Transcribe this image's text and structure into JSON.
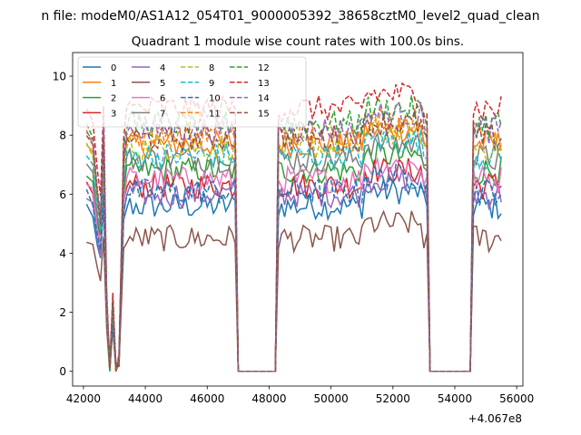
{
  "chart_data": {
    "type": "line",
    "suptitle": "n file: modeM0/AS1A12_054T01_9000005392_38658cztM0_level2_quad_clean",
    "title": "Quadrant 1 module wise count rates with 100.0s bins.",
    "xlabel": "",
    "ylabel": "",
    "x_offset_label": "+4.067e8",
    "xlim": [
      41650,
      56200
    ],
    "ylim": [
      -0.5,
      10.8
    ],
    "x_ticks": [
      42000,
      44000,
      46000,
      48000,
      50000,
      52000,
      54000,
      56000
    ],
    "x_tick_labels": [
      "42000",
      "44000",
      "46000",
      "48000",
      "50000",
      "52000",
      "54000",
      "56000"
    ],
    "y_ticks": [
      0,
      2,
      4,
      6,
      8,
      10
    ],
    "y_tick_labels": [
      "0",
      "2",
      "4",
      "6",
      "8",
      "10"
    ],
    "grid": false,
    "legend_position": "top-left",
    "legend_columns": 4,
    "x_segments": [
      {
        "start": 42100,
        "end": 43400,
        "kind": "dip"
      },
      {
        "start": 43400,
        "end": 46900,
        "kind": "on"
      },
      {
        "start": 47000,
        "end": 48200,
        "kind": "off"
      },
      {
        "start": 48300,
        "end": 53100,
        "kind": "on"
      },
      {
        "start": 53200,
        "end": 54500,
        "kind": "off"
      },
      {
        "start": 54600,
        "end": 55500,
        "kind": "on"
      }
    ],
    "series": [
      {
        "name": "0",
        "color": "#1f77b4",
        "dash": "solid",
        "level": 5.6
      },
      {
        "name": "1",
        "color": "#ff7f0e",
        "dash": "solid",
        "level": 7.7
      },
      {
        "name": "2",
        "color": "#2ca02c",
        "dash": "solid",
        "level": 6.8
      },
      {
        "name": "3",
        "color": "#d62728",
        "dash": "solid",
        "level": 6.3
      },
      {
        "name": "4",
        "color": "#9467bd",
        "dash": "solid",
        "level": 6.0
      },
      {
        "name": "5",
        "color": "#8c564b",
        "dash": "solid",
        "level": 4.5
      },
      {
        "name": "6",
        "color": "#e377c2",
        "dash": "solid",
        "level": 6.5
      },
      {
        "name": "7",
        "color": "#7f7f7f",
        "dash": "solid",
        "level": 7.2
      },
      {
        "name": "8",
        "color": "#bcbd22",
        "dash": "dashed",
        "level": 7.6
      },
      {
        "name": "9",
        "color": "#17becf",
        "dash": "dashed",
        "level": 7.3
      },
      {
        "name": "10",
        "color": "#1f77b4",
        "dash": "dashed",
        "level": 6.1
      },
      {
        "name": "11",
        "color": "#ff7f0e",
        "dash": "dashed",
        "level": 8.0
      },
      {
        "name": "12",
        "color": "#2ca02c",
        "dash": "dashed",
        "level": 8.4
      },
      {
        "name": "13",
        "color": "#d62728",
        "dash": "dashed",
        "level": 8.9
      },
      {
        "name": "14",
        "color": "#9467bd",
        "dash": "dashed",
        "level": 8.2
      },
      {
        "name": "15",
        "color": "#8c564b",
        "dash": "dashed",
        "level": 7.9
      }
    ]
  }
}
